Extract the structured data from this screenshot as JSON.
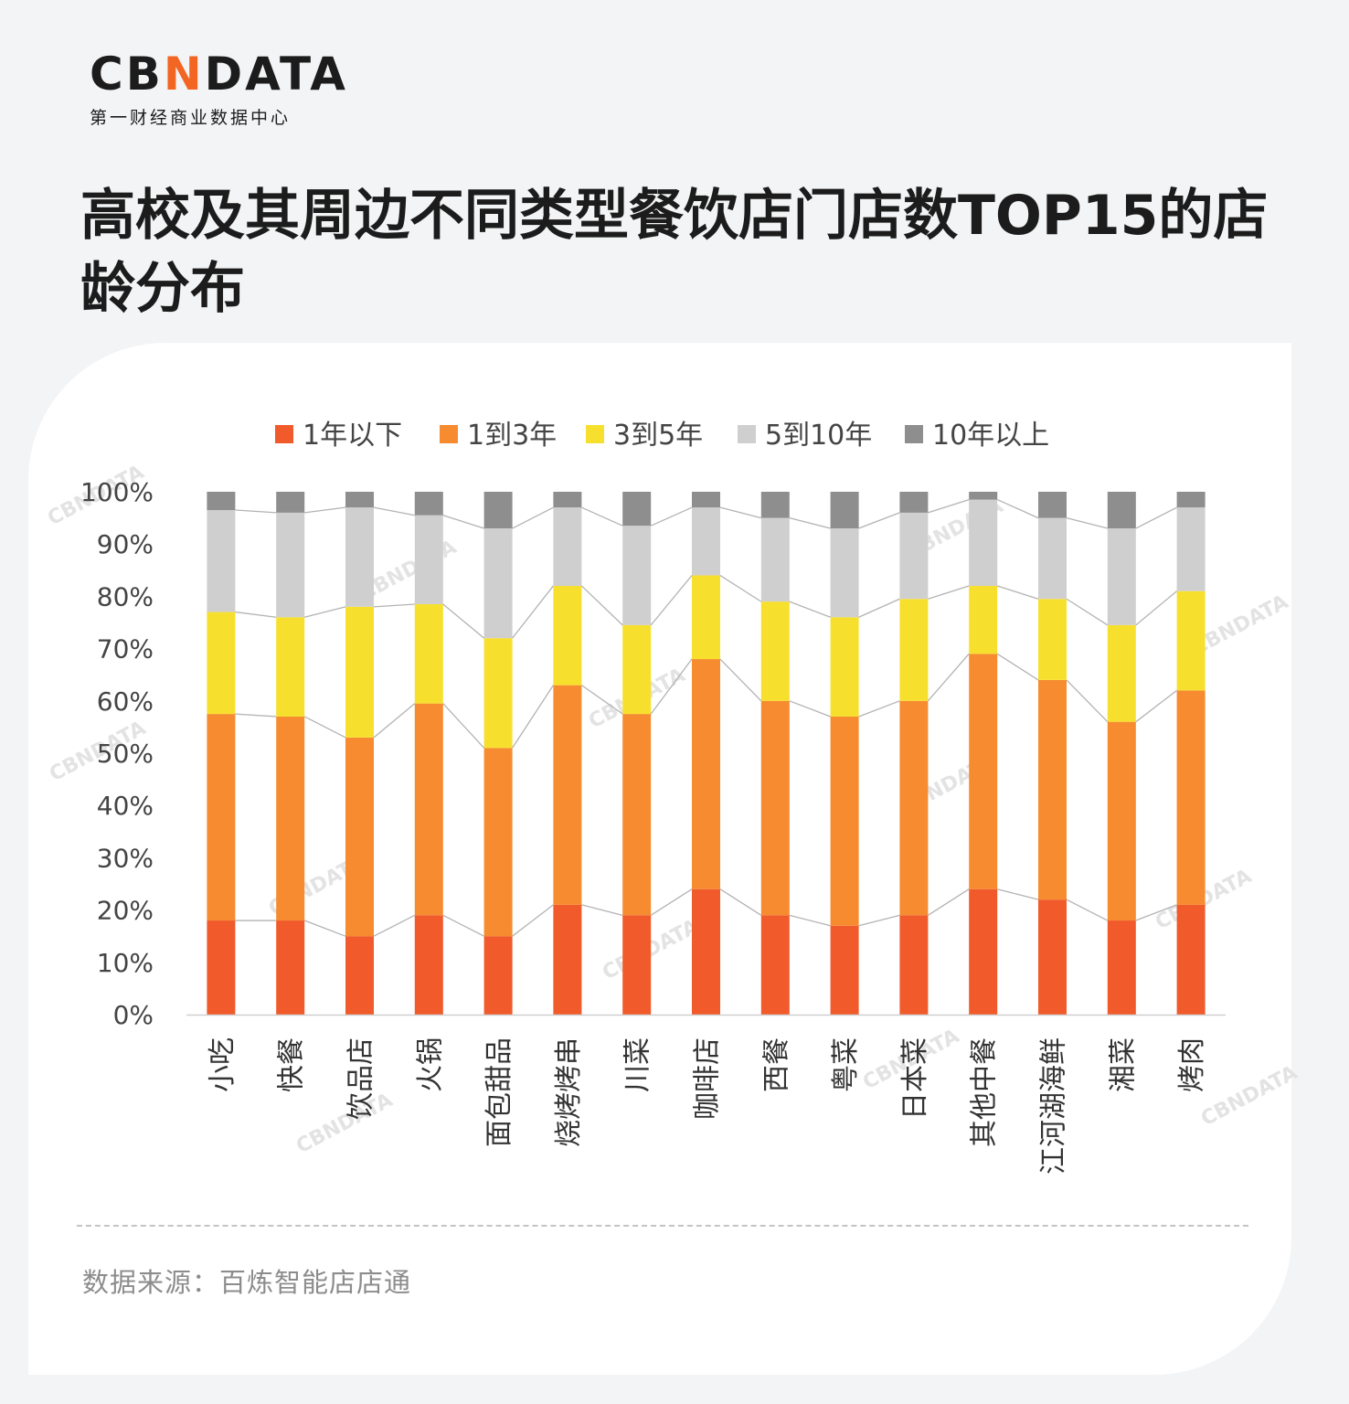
{
  "brand": {
    "logo_pre": "CB",
    "logo_accent": "N",
    "logo_post": "DATA",
    "subtitle": "第一财经商业数据中心",
    "accent_color": "#f26522"
  },
  "title": "高校及其周边不同类型餐饮店门店数TOP15的店龄分布",
  "source": "数据来源：百炼智能店店通",
  "watermark": "CBNDATA",
  "chart_data": {
    "type": "bar",
    "stacked": true,
    "normalized": true,
    "categories": [
      "小吃",
      "快餐",
      "饮品店",
      "火锅",
      "面包甜品",
      "烧烤烤串",
      "川菜",
      "咖啡店",
      "西餐",
      "粤菜",
      "日本菜",
      "其他中餐",
      "江河湖海鲜",
      "湘菜",
      "烤肉"
    ],
    "series": [
      {
        "name": "1年以下",
        "color": "#f15a2b",
        "values": [
          18,
          18,
          15,
          19,
          15,
          21,
          19,
          24,
          19,
          17,
          19,
          24,
          22,
          18,
          21
        ]
      },
      {
        "name": "1到3年",
        "color": "#f68b30",
        "values": [
          39.5,
          39,
          38,
          40.5,
          36,
          42,
          38.5,
          44,
          41,
          40,
          41,
          45,
          42,
          38,
          41
        ]
      },
      {
        "name": "3到5年",
        "color": "#f7e02d",
        "values": [
          19.5,
          19,
          25,
          19,
          21,
          19,
          17,
          16,
          19,
          19,
          19.5,
          13,
          15.5,
          18.5,
          19
        ]
      },
      {
        "name": "5到10年",
        "color": "#cfcfcf",
        "values": [
          19.5,
          20,
          19,
          17,
          21,
          15,
          19,
          13,
          16,
          17,
          16.5,
          16.5,
          15.5,
          18.5,
          16
        ]
      },
      {
        "name": "10年以上",
        "color": "#8e8e8e",
        "values": [
          3.5,
          4,
          3,
          4.5,
          7,
          3,
          6.5,
          3,
          5,
          7,
          4,
          1.5,
          5,
          7,
          3
        ]
      }
    ],
    "y_ticks": [
      "0%",
      "10%",
      "20%",
      "30%",
      "40%",
      "50%",
      "60%",
      "70%",
      "80%",
      "90%",
      "100%"
    ],
    "ylim": [
      0,
      100
    ],
    "legend_position": "top",
    "grid": false
  }
}
